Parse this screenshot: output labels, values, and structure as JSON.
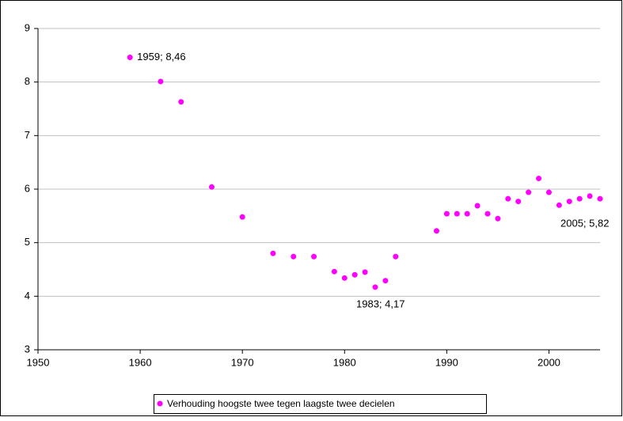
{
  "chart_data": {
    "type": "scatter",
    "color": "#ff00ff",
    "grid": true,
    "series": [
      {
        "name": "Verhouding hoogste twee tegen laagste twee decielen",
        "color": "#ff00ff",
        "x": [
          1959,
          1962,
          1964,
          1967,
          1970,
          1973,
          1975,
          1977,
          1979,
          1980,
          1981,
          1982,
          1983,
          1984,
          1985,
          1989,
          1990,
          1991,
          1992,
          1993,
          1994,
          1995,
          1996,
          1997,
          1998,
          1999,
          2000,
          2001,
          2002,
          2003,
          2004,
          2005
        ],
        "values": [
          8.46,
          8.01,
          7.63,
          6.04,
          5.48,
          4.8,
          4.74,
          4.74,
          4.46,
          4.34,
          4.4,
          4.45,
          4.17,
          4.29,
          4.74,
          5.22,
          5.54,
          5.54,
          5.54,
          5.69,
          5.54,
          5.45,
          5.82,
          5.77,
          5.94,
          6.2,
          5.94,
          5.7,
          5.77,
          5.82,
          5.87,
          5.82
        ],
        "value_labels": [
          "1959; 8,46",
          null,
          null,
          null,
          null,
          null,
          null,
          null,
          null,
          null,
          null,
          null,
          "1983; 4,17",
          null,
          null,
          null,
          null,
          null,
          null,
          null,
          null,
          null,
          null,
          null,
          null,
          null,
          null,
          null,
          null,
          null,
          null,
          "2005; 5,82"
        ]
      }
    ],
    "xlim": [
      1950,
      2005
    ],
    "xticks": [
      1950,
      1960,
      1970,
      1980,
      1990,
      2000
    ],
    "ylim": [
      3,
      9
    ],
    "yticks": [
      3,
      4,
      5,
      6,
      7,
      8,
      9
    ]
  }
}
